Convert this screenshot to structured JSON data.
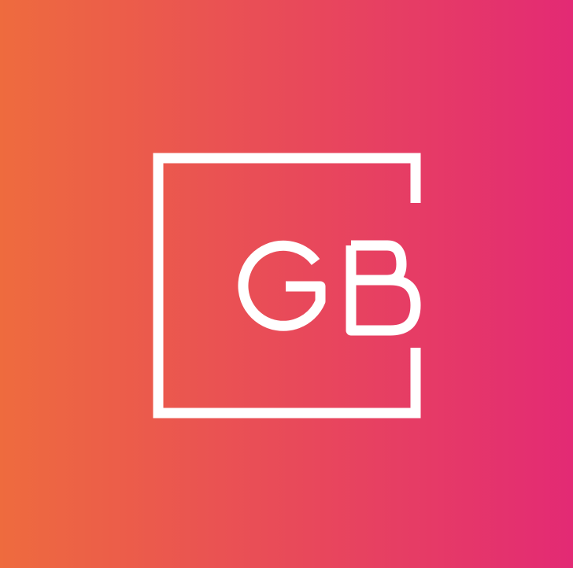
{
  "logo": {
    "monogram": "GB",
    "gradient_start": "#EE6B3E",
    "gradient_end": "#E32A74",
    "mark_color": "#FFFFFF"
  }
}
